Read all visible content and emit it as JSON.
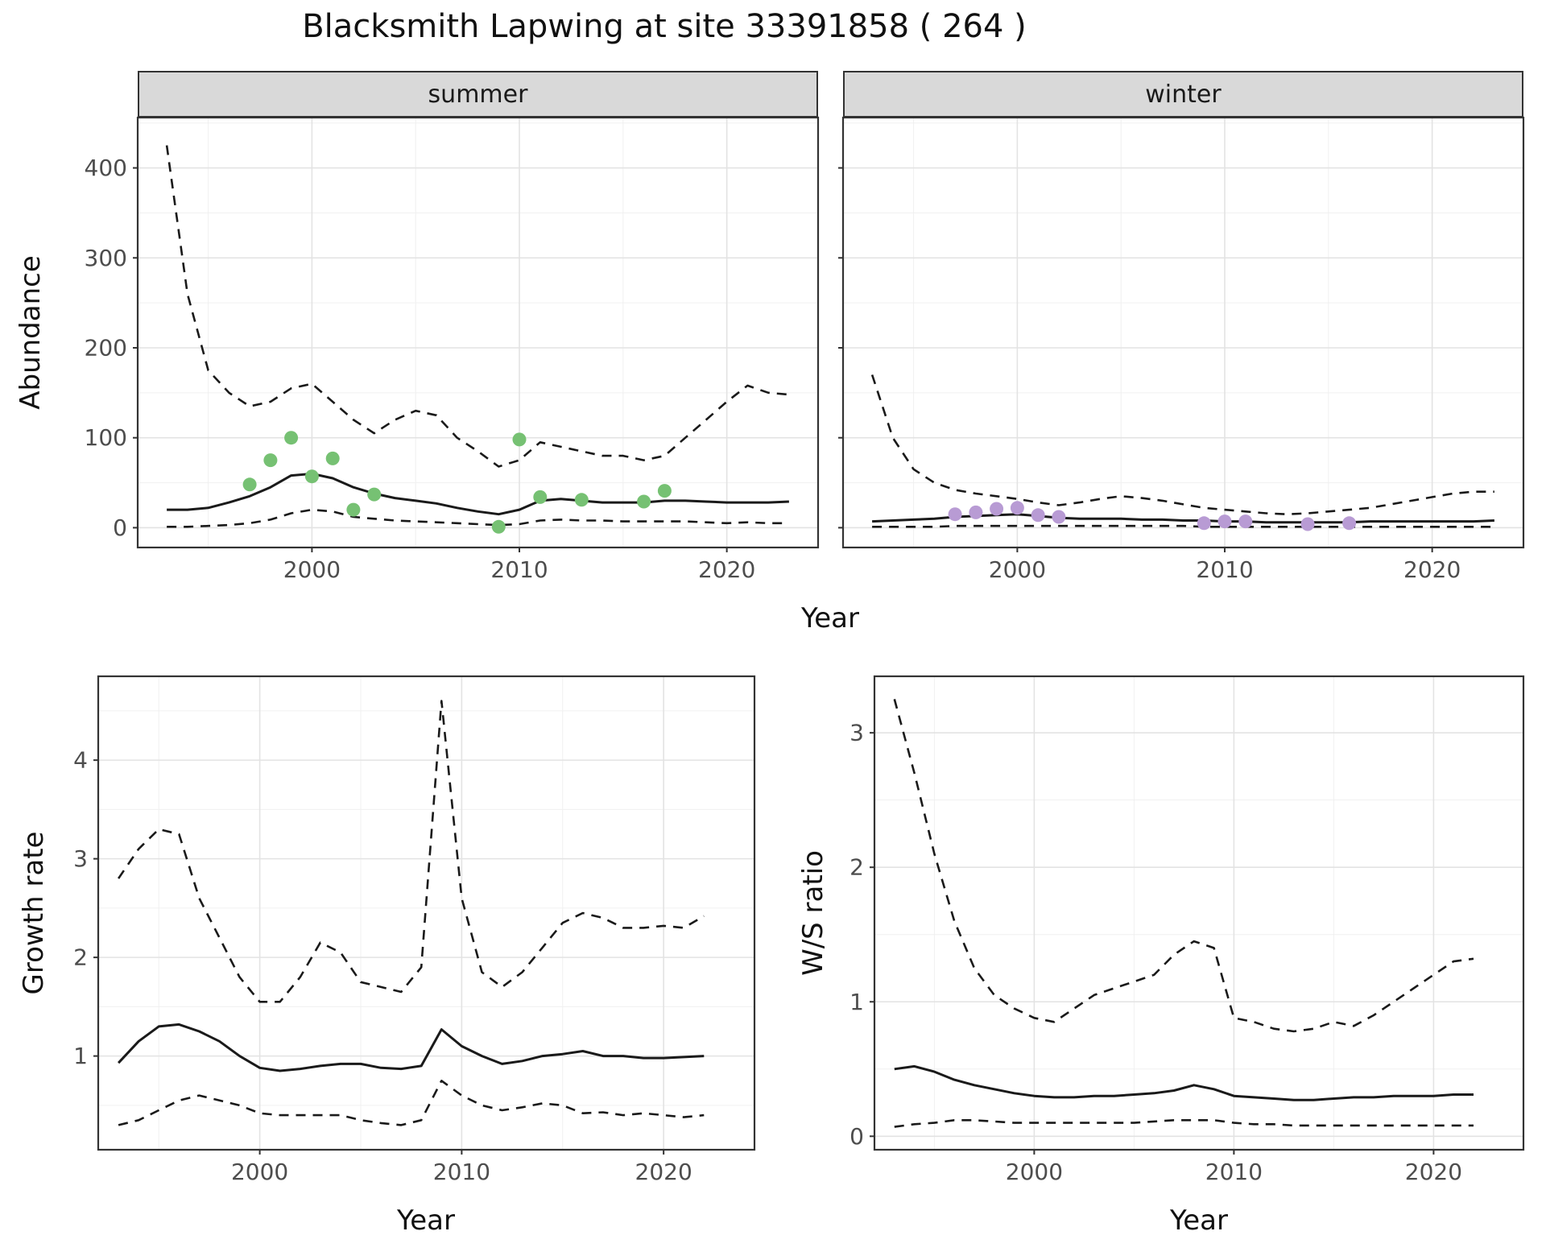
{
  "title": "Blacksmith Lapwing at site 33391858 ( 264 )",
  "facets": {
    "summer": "summer",
    "winter": "winter"
  },
  "axis_labels": {
    "abundance": "Abundance",
    "year_top": "Year",
    "growth": "Growth rate",
    "year_growth": "Year",
    "ws": "W/S ratio",
    "year_ws": "Year"
  },
  "colors": {
    "summer_points": "#76C173",
    "winter_points": "#B89BD4",
    "line": "#1A1A1A",
    "grid_major": "#E3E3E3",
    "grid_minor": "#F0F0F0",
    "tick_text": "#4D4D4D",
    "tick_mark": "#333333",
    "panel_border": "#333333",
    "strip_bg": "#D9D9D9"
  },
  "chart_data": [
    {
      "id": "abundance-summer",
      "type": "line",
      "facet_label": "summer",
      "ylabel": "Abundance",
      "xlabel": "Year",
      "xlim": [
        1991.6,
        2024.4
      ],
      "ylim": [
        -22,
        456
      ],
      "xticks": [
        2000,
        2010,
        2020
      ],
      "yticks": [
        0,
        100,
        200,
        300,
        400
      ],
      "x": [
        1993,
        1994,
        1995,
        1996,
        1997,
        1998,
        1999,
        2000,
        2001,
        2002,
        2003,
        2004,
        2005,
        2006,
        2007,
        2008,
        2009,
        2010,
        2011,
        2012,
        2013,
        2014,
        2015,
        2016,
        2017,
        2018,
        2019,
        2020,
        2021,
        2022,
        2023
      ],
      "series": [
        {
          "name": "upper-ci",
          "style": "dashed",
          "values": [
            425,
            260,
            175,
            150,
            135,
            140,
            155,
            160,
            140,
            120,
            105,
            120,
            130,
            125,
            100,
            85,
            68,
            75,
            95,
            90,
            85,
            80,
            80,
            75,
            80,
            100,
            120,
            140,
            158,
            150,
            148
          ]
        },
        {
          "name": "median",
          "style": "solid",
          "values": [
            20,
            20,
            22,
            28,
            35,
            45,
            58,
            60,
            55,
            45,
            38,
            33,
            30,
            27,
            22,
            18,
            15,
            20,
            30,
            32,
            30,
            28,
            28,
            28,
            30,
            30,
            29,
            28,
            28,
            28,
            29
          ]
        },
        {
          "name": "lower-ci",
          "style": "dashed",
          "values": [
            1,
            1,
            2,
            3,
            5,
            9,
            16,
            20,
            18,
            12,
            10,
            8,
            7,
            6,
            5,
            4,
            3,
            4,
            8,
            9,
            8,
            8,
            7,
            7,
            7,
            7,
            6,
            5,
            6,
            5,
            5
          ]
        }
      ],
      "points": {
        "name": "observed-counts-summer",
        "color_key": "summer_points",
        "x": [
          1997,
          1998,
          1999,
          2000,
          2001,
          2002,
          2003,
          2009,
          2010,
          2011,
          2013,
          2016,
          2017
        ],
        "y": [
          48,
          75,
          100,
          57,
          77,
          20,
          37,
          1,
          98,
          34,
          31,
          29,
          41
        ]
      }
    },
    {
      "id": "abundance-winter",
      "type": "line",
      "facet_label": "winter",
      "ylabel": "Abundance",
      "xlabel": "Year",
      "xlim": [
        1991.6,
        2024.4
      ],
      "ylim": [
        -22,
        456
      ],
      "xticks": [
        2000,
        2010,
        2020
      ],
      "yticks": [
        0,
        100,
        200,
        300,
        400
      ],
      "x": [
        1993,
        1994,
        1995,
        1996,
        1997,
        1998,
        1999,
        2000,
        2001,
        2002,
        2003,
        2004,
        2005,
        2006,
        2007,
        2008,
        2009,
        2010,
        2011,
        2012,
        2013,
        2014,
        2015,
        2016,
        2017,
        2018,
        2019,
        2020,
        2021,
        2022,
        2023
      ],
      "series": [
        {
          "name": "upper-ci",
          "style": "dashed",
          "values": [
            170,
            100,
            65,
            50,
            42,
            38,
            35,
            32,
            28,
            25,
            28,
            32,
            35,
            33,
            30,
            26,
            22,
            20,
            18,
            16,
            15,
            16,
            18,
            20,
            22,
            26,
            30,
            34,
            38,
            40,
            40
          ]
        },
        {
          "name": "median",
          "style": "solid",
          "values": [
            7,
            8,
            9,
            10,
            12,
            13,
            14,
            15,
            13,
            11,
            10,
            10,
            10,
            9,
            9,
            8,
            8,
            7,
            7,
            6,
            6,
            6,
            6,
            6,
            7,
            7,
            7,
            7,
            7,
            7,
            8
          ]
        },
        {
          "name": "lower-ci",
          "style": "dashed",
          "values": [
            1,
            1,
            1,
            1,
            2,
            2,
            2,
            2,
            2,
            2,
            2,
            2,
            2,
            2,
            2,
            2,
            1,
            1,
            1,
            1,
            1,
            1,
            1,
            1,
            1,
            1,
            1,
            1,
            1,
            1,
            1
          ]
        }
      ],
      "points": {
        "name": "observed-counts-winter",
        "color_key": "winter_points",
        "x": [
          1997,
          1998,
          1999,
          2000,
          2001,
          2002,
          2009,
          2010,
          2011,
          2014,
          2016
        ],
        "y": [
          15,
          17,
          21,
          22,
          14,
          12,
          5,
          7,
          7,
          4,
          5
        ]
      }
    },
    {
      "id": "growth-rate",
      "type": "line",
      "facet_label": "",
      "ylabel": "Growth rate",
      "xlabel": "Year",
      "xlim": [
        1992,
        2024.5
      ],
      "ylim": [
        0.05,
        4.85
      ],
      "xticks": [
        2000,
        2010,
        2020
      ],
      "yticks": [
        1,
        2,
        3,
        4
      ],
      "x": [
        1993,
        1994,
        1995,
        1996,
        1997,
        1998,
        1999,
        2000,
        2001,
        2002,
        2003,
        2004,
        2005,
        2006,
        2007,
        2008,
        2009,
        2010,
        2011,
        2012,
        2013,
        2014,
        2015,
        2016,
        2017,
        2018,
        2019,
        2020,
        2021,
        2022
      ],
      "series": [
        {
          "name": "upper-ci",
          "style": "dashed",
          "values": [
            2.8,
            3.1,
            3.3,
            3.25,
            2.6,
            2.2,
            1.8,
            1.55,
            1.55,
            1.8,
            2.15,
            2.05,
            1.75,
            1.7,
            1.65,
            1.9,
            4.6,
            2.6,
            1.85,
            1.7,
            1.85,
            2.1,
            2.35,
            2.45,
            2.4,
            2.3,
            2.3,
            2.32,
            2.3,
            2.42
          ]
        },
        {
          "name": "median",
          "style": "solid",
          "values": [
            0.93,
            1.15,
            1.3,
            1.32,
            1.25,
            1.15,
            1.0,
            0.88,
            0.85,
            0.87,
            0.9,
            0.92,
            0.92,
            0.88,
            0.87,
            0.9,
            1.27,
            1.1,
            1.0,
            0.92,
            0.95,
            1.0,
            1.02,
            1.05,
            1.0,
            1.0,
            0.98,
            0.98,
            0.99,
            1.0
          ]
        },
        {
          "name": "lower-ci",
          "style": "dashed",
          "values": [
            0.3,
            0.35,
            0.45,
            0.55,
            0.6,
            0.55,
            0.5,
            0.42,
            0.4,
            0.4,
            0.4,
            0.4,
            0.35,
            0.32,
            0.3,
            0.35,
            0.75,
            0.6,
            0.5,
            0.45,
            0.48,
            0.52,
            0.5,
            0.42,
            0.43,
            0.4,
            0.42,
            0.4,
            0.38,
            0.4
          ]
        }
      ],
      "points": null
    },
    {
      "id": "ws-ratio",
      "type": "line",
      "facet_label": "",
      "ylabel": "W/S ratio",
      "xlabel": "Year",
      "xlim": [
        1992,
        2024.5
      ],
      "ylim": [
        -0.1,
        3.42
      ],
      "xticks": [
        2000,
        2010,
        2020
      ],
      "yticks": [
        0,
        1,
        2,
        3
      ],
      "x": [
        1993,
        1994,
        1995,
        1996,
        1997,
        1998,
        1999,
        2000,
        2001,
        2002,
        2003,
        2004,
        2005,
        2006,
        2007,
        2008,
        2009,
        2010,
        2011,
        2012,
        2013,
        2014,
        2015,
        2016,
        2017,
        2018,
        2019,
        2020,
        2021,
        2022
      ],
      "series": [
        {
          "name": "upper-ci",
          "style": "dashed",
          "values": [
            3.25,
            2.7,
            2.1,
            1.6,
            1.25,
            1.05,
            0.95,
            0.88,
            0.85,
            0.95,
            1.05,
            1.1,
            1.15,
            1.2,
            1.35,
            1.45,
            1.4,
            0.88,
            0.85,
            0.8,
            0.78,
            0.8,
            0.85,
            0.82,
            0.9,
            1.0,
            1.1,
            1.2,
            1.3,
            1.32
          ]
        },
        {
          "name": "median",
          "style": "solid",
          "values": [
            0.5,
            0.52,
            0.48,
            0.42,
            0.38,
            0.35,
            0.32,
            0.3,
            0.29,
            0.29,
            0.3,
            0.3,
            0.31,
            0.32,
            0.34,
            0.38,
            0.35,
            0.3,
            0.29,
            0.28,
            0.27,
            0.27,
            0.28,
            0.29,
            0.29,
            0.3,
            0.3,
            0.3,
            0.31,
            0.31
          ]
        },
        {
          "name": "lower-ci",
          "style": "dashed",
          "values": [
            0.07,
            0.09,
            0.1,
            0.12,
            0.12,
            0.11,
            0.1,
            0.1,
            0.1,
            0.1,
            0.1,
            0.1,
            0.1,
            0.11,
            0.12,
            0.12,
            0.12,
            0.1,
            0.09,
            0.09,
            0.08,
            0.08,
            0.08,
            0.08,
            0.08,
            0.08,
            0.08,
            0.08,
            0.08,
            0.08
          ]
        }
      ],
      "points": null
    }
  ]
}
